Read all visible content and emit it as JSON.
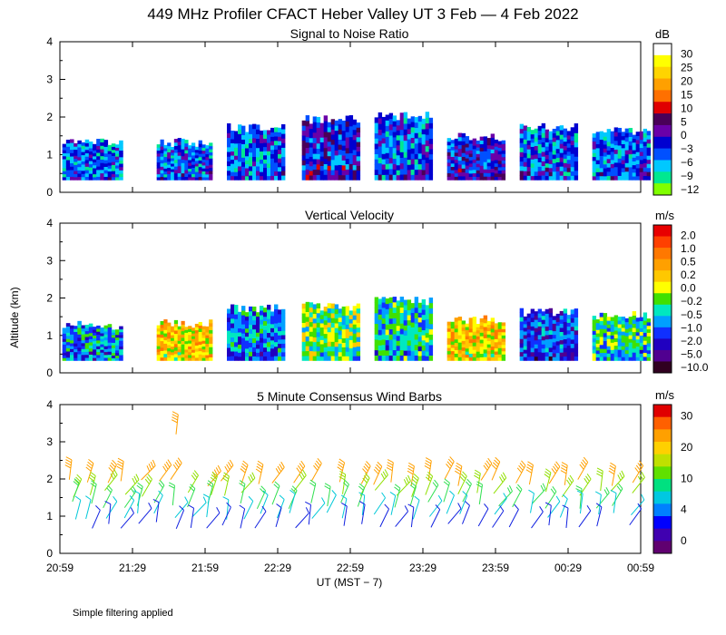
{
  "title": "449 MHz Profiler CFACT Heber Valley UT  3 Feb —  4 Feb 2022",
  "ylabel": "Altitude (km)",
  "xlabel": "UT  (MST − 7)",
  "footnote": "Simple filtering applied",
  "chart_data": [
    {
      "type": "heatmap",
      "title": "Signal to Noise Ratio",
      "xlabel": "UT  (MST − 7)",
      "ylabel": "Altitude (km)",
      "ylim": [
        0,
        4
      ],
      "yticks": [
        "0",
        "1",
        "2",
        "3",
        "4"
      ],
      "xticks": [
        "20:59",
        "21:29",
        "21:59",
        "22:29",
        "22:59",
        "23:29",
        "23:59",
        "00:29",
        "00:59"
      ],
      "colorbar": {
        "unit": "dB",
        "labels": [
          "30",
          "25",
          "20",
          "15",
          "10",
          "5",
          "0",
          "−3",
          "−6",
          "−9",
          "−12"
        ],
        "colors": [
          "#ffffff",
          "#ffff00",
          "#ffd400",
          "#ffa000",
          "#ff7000",
          "#e00000",
          "#4a0058",
          "#6a00a8",
          "#0000d0",
          "#0050ff",
          "#00c8ff",
          "#00e890",
          "#80ff00"
        ]
      },
      "blocks": [
        {
          "x0_min": 1,
          "x1_min": 26,
          "top_km": 1.45,
          "level": 9
        },
        {
          "x0_min": 40,
          "x1_min": 63,
          "top_km": 1.45,
          "level": 9
        },
        {
          "x0_min": 69,
          "x1_min": 93,
          "top_km": 1.85,
          "level": 9
        },
        {
          "x0_min": 100,
          "x1_min": 124,
          "top_km": 2.05,
          "level": 8
        },
        {
          "x0_min": 130,
          "x1_min": 154,
          "top_km": 2.15,
          "level": 9
        },
        {
          "x0_min": 160,
          "x1_min": 184,
          "top_km": 1.6,
          "level": 8
        },
        {
          "x0_min": 190,
          "x1_min": 214,
          "top_km": 1.85,
          "level": 9
        },
        {
          "x0_min": 220,
          "x1_min": 244,
          "top_km": 1.75,
          "level": 9
        }
      ]
    },
    {
      "type": "heatmap",
      "title": "Vertical Velocity",
      "ylim": [
        0,
        4
      ],
      "yticks": [
        "0",
        "1",
        "2",
        "3",
        "4"
      ],
      "colorbar": {
        "unit": "m/s",
        "labels": [
          "2.0",
          "1.0",
          "0.5",
          "0.2",
          "0.0",
          "−0.2",
          "−0.5",
          "−1.0",
          "−2.0",
          "−5.0",
          "−10.0"
        ],
        "colors": [
          "#e80000",
          "#ff4000",
          "#ff7800",
          "#ffa000",
          "#ffc800",
          "#ffff00",
          "#40e000",
          "#00e8c0",
          "#00a0ff",
          "#1030ff",
          "#2000c0",
          "#500090",
          "#300020"
        ]
      },
      "blocks": [
        {
          "x0_min": 1,
          "x1_min": 26,
          "top_km": 1.4,
          "level": 8
        },
        {
          "x0_min": 40,
          "x1_min": 63,
          "top_km": 1.45,
          "level": 4
        },
        {
          "x0_min": 69,
          "x1_min": 93,
          "top_km": 1.85,
          "level": 8
        },
        {
          "x0_min": 100,
          "x1_min": 124,
          "top_km": 1.9,
          "level": 6
        },
        {
          "x0_min": 130,
          "x1_min": 154,
          "top_km": 2.05,
          "level": 7
        },
        {
          "x0_min": 160,
          "x1_min": 184,
          "top_km": 1.55,
          "level": 4
        },
        {
          "x0_min": 190,
          "x1_min": 214,
          "top_km": 1.75,
          "level": 9
        },
        {
          "x0_min": 220,
          "x1_min": 244,
          "top_km": 1.65,
          "level": 7
        }
      ]
    },
    {
      "type": "scatter",
      "title": "5 Minute Consensus Wind Barbs",
      "ylim": [
        0,
        4
      ],
      "yticks": [
        "0",
        "1",
        "2",
        "3",
        "4"
      ],
      "colorbar": {
        "unit": "m/s",
        "labels": [
          "30",
          "20",
          "10",
          "4",
          "0"
        ],
        "colors": [
          "#e00000",
          "#ff6000",
          "#ffa000",
          "#ffd000",
          "#c0e000",
          "#60e000",
          "#00e080",
          "#00c8e0",
          "#0080ff",
          "#0000ff",
          "#4000b0",
          "#600070"
        ]
      },
      "levels": [
        {
          "alt_km": 1.9,
          "speed_ms": 20,
          "color": "#ffa000"
        },
        {
          "alt_km": 1.6,
          "speed_ms": 14,
          "color": "#90e000"
        },
        {
          "alt_km": 1.3,
          "speed_ms": 10,
          "color": "#30e050"
        },
        {
          "alt_km": 1.0,
          "speed_ms": 7,
          "color": "#00c8d8"
        },
        {
          "alt_km": 0.75,
          "speed_ms": 3,
          "color": "#1020e0"
        }
      ],
      "extra": {
        "time_min": 48,
        "alt_km": 3.2,
        "speed_ms": 20,
        "color": "#ffa000"
      }
    }
  ]
}
